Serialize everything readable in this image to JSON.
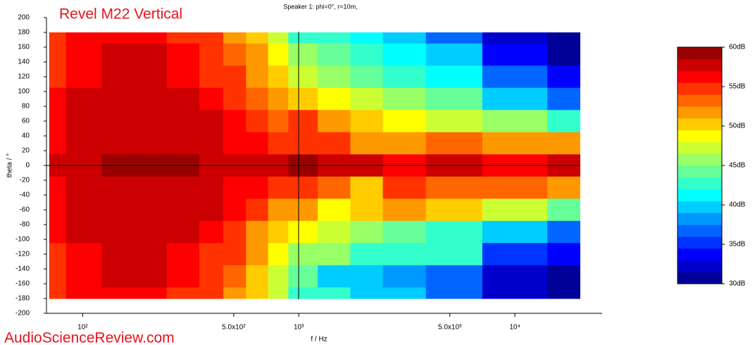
{
  "chart_data": {
    "type": "heatmap",
    "title": "Revel M22 Vertical",
    "subtitle": "Speaker 1: phi=0°, r=10m,",
    "x_label": "f / Hz",
    "y_label": "theta / °",
    "watermark": "AudioScienceReview.com",
    "x_log": true,
    "x": [
      70,
      100,
      150,
      200,
      300,
      400,
      500,
      650,
      800,
      1000,
      1500,
      2000,
      3000,
      5000,
      10000,
      20000
    ],
    "y": [
      180,
      150,
      120,
      90,
      60,
      30,
      0,
      -30,
      -60,
      -90,
      -120,
      -150,
      -180
    ],
    "z": [
      [
        55,
        56,
        56,
        56,
        55,
        54,
        52,
        50,
        47,
        43,
        43,
        41,
        40,
        37,
        32,
        30
      ],
      [
        55,
        56,
        57,
        57,
        56,
        55,
        53,
        51,
        48,
        45,
        44,
        42,
        41,
        39,
        34,
        31
      ],
      [
        55,
        56,
        57,
        57,
        56,
        55,
        54,
        52,
        50,
        47,
        46,
        44,
        42,
        41,
        36,
        33
      ],
      [
        56,
        57,
        58,
        58,
        57,
        56,
        55,
        53,
        51,
        50,
        48,
        47,
        46,
        44,
        40,
        37
      ],
      [
        56,
        57,
        58,
        58,
        57,
        57,
        56,
        54,
        53,
        54,
        51,
        50,
        49,
        47,
        45,
        43
      ],
      [
        56,
        57,
        58,
        58,
        58,
        57,
        56,
        56,
        55,
        55,
        54,
        51,
        52,
        53,
        52,
        52
      ],
      [
        57,
        58,
        59,
        59,
        59,
        58,
        58,
        58,
        58,
        59,
        57,
        57,
        56,
        57,
        56,
        57
      ],
      [
        56,
        57,
        58,
        58,
        58,
        57,
        56,
        56,
        55,
        55,
        53,
        50,
        54,
        53,
        53,
        51
      ],
      [
        56,
        57,
        58,
        58,
        57,
        57,
        56,
        54,
        52,
        52,
        48,
        50,
        52,
        50,
        47,
        44
      ],
      [
        56,
        57,
        58,
        58,
        57,
        56,
        55,
        52,
        50,
        48,
        47,
        45,
        44,
        43,
        40,
        37
      ],
      [
        55,
        56,
        57,
        57,
        56,
        55,
        54,
        51,
        49,
        45,
        45,
        43,
        42,
        42,
        35,
        33
      ],
      [
        55,
        56,
        57,
        57,
        56,
        55,
        53,
        50,
        47,
        44,
        40,
        39,
        38,
        36,
        32,
        30
      ],
      [
        55,
        56,
        56,
        56,
        55,
        54,
        52,
        50,
        47,
        43,
        42,
        40,
        39,
        36,
        32,
        30
      ]
    ],
    "xlim": [
      68,
      25350
    ],
    "ylim": [
      -200,
      200
    ],
    "xticks": [
      {
        "value": 100,
        "label": "10²"
      },
      {
        "value": 500,
        "label": "5.0x10²"
      },
      {
        "value": 1000,
        "label": "10³"
      },
      {
        "value": 5000,
        "label": "5.0x10³"
      },
      {
        "value": 10000,
        "label": "10⁴"
      }
    ],
    "yticks": [
      200,
      180,
      160,
      140,
      120,
      100,
      80,
      60,
      40,
      20,
      0,
      -20,
      -40,
      -60,
      -80,
      -100,
      -120,
      -140,
      -160,
      -180,
      -200
    ],
    "zlim": [
      30,
      60
    ],
    "zlevels": 20,
    "colormap": "jet",
    "zticks": [
      {
        "value": 60,
        "label": "60dB"
      },
      {
        "value": 55,
        "label": "55dB"
      },
      {
        "value": 50,
        "label": "50dB"
      },
      {
        "value": 45,
        "label": "45dB"
      },
      {
        "value": 40,
        "label": "40dB"
      },
      {
        "value": 35,
        "label": "35dB"
      },
      {
        "value": 30,
        "label": "30dB"
      }
    ]
  }
}
